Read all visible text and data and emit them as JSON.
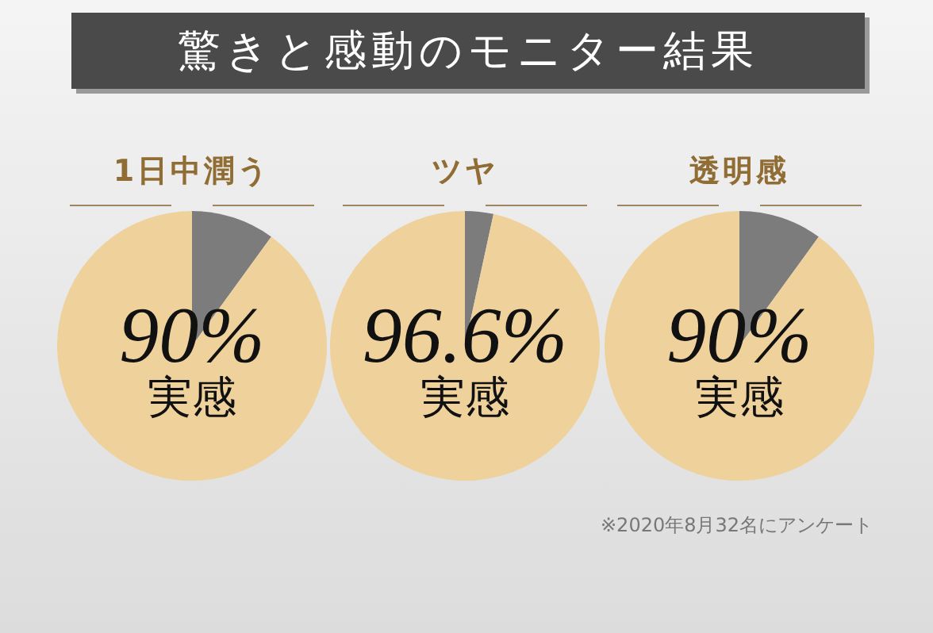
{
  "chart_data": [
    {
      "type": "other",
      "title": "驚きと感動のモニター結果",
      "annotations": [
        "※2020年8月32名にアンケート"
      ]
    },
    {
      "type": "pie",
      "title": "1日中潤う",
      "categories": [
        null,
        null
      ],
      "values": [
        10,
        90
      ],
      "colors": [
        "#7c7c7c",
        "#efd19c"
      ],
      "value_labels": [
        null,
        "90%"
      ],
      "annotations": [
        "実感"
      ]
    },
    {
      "type": "pie",
      "title": "ツヤ",
      "categories": [
        null,
        null
      ],
      "values": [
        3.4,
        96.6
      ],
      "colors": [
        "#7c7c7c",
        "#efd19c"
      ],
      "value_labels": [
        null,
        "96.6%"
      ],
      "annotations": [
        "実感"
      ]
    },
    {
      "type": "pie",
      "title": "透明感",
      "categories": [
        null,
        null
      ],
      "values": [
        10,
        90
      ],
      "colors": [
        "#7c7c7c",
        "#efd19c"
      ],
      "value_labels": [
        null,
        "90%"
      ],
      "annotations": [
        "実感"
      ]
    }
  ]
}
